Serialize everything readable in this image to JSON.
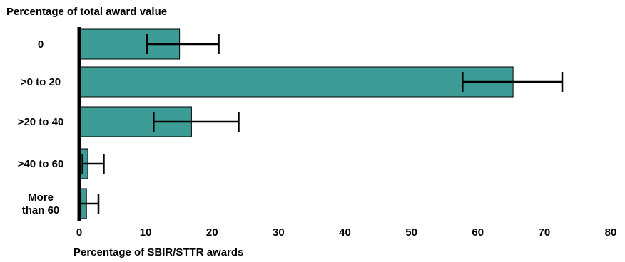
{
  "chart_data": {
    "type": "bar",
    "orientation": "horizontal",
    "title": "",
    "ylabel": "Percentage of total award value",
    "xlabel": "Percentage of SBIR/STTR awards",
    "categories": [
      "0",
      ">0 to 20",
      ">20  to 40",
      ">40  to 60",
      "More than 60"
    ],
    "category_lines": [
      [
        "0"
      ],
      [
        ">0 to 20"
      ],
      [
        ">20  to 40"
      ],
      [
        ">40  to 60"
      ],
      [
        "More",
        "than 60"
      ]
    ],
    "values": [
      15.1,
      65.3,
      16.9,
      1.3,
      1.1
    ],
    "error_low": [
      10.2,
      57.7,
      11.2,
      0.5,
      0.2
    ],
    "error_high": [
      21.0,
      72.7,
      24.0,
      3.7,
      2.9
    ],
    "xlim": [
      0,
      80
    ],
    "xticks": [
      0,
      10,
      20,
      30,
      40,
      50,
      60,
      70,
      80
    ],
    "grid": false,
    "legend": "none",
    "colors": {
      "bar": "#3d9c95",
      "bar_edge": "#000000",
      "axis": "#000000",
      "error_bar": "#000000"
    }
  }
}
